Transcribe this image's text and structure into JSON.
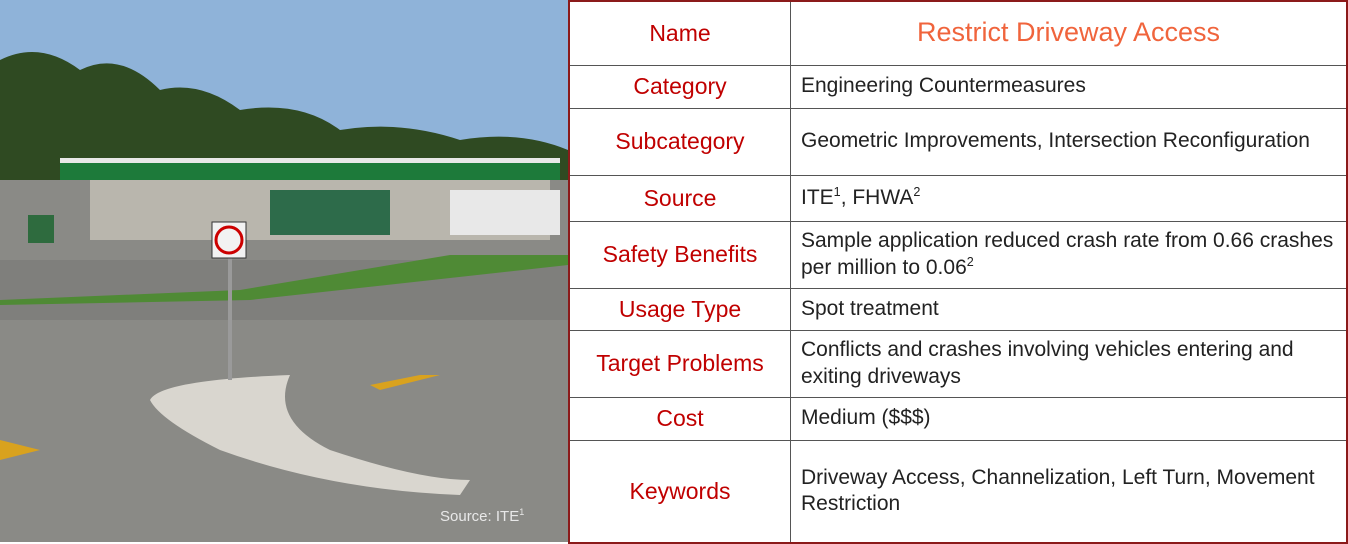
{
  "photo": {
    "caption": {
      "text": "Source: ITE",
      "sup": "1"
    }
  },
  "table": {
    "rows": [
      {
        "label": "Name",
        "value": "Restrict Driveway Access"
      },
      {
        "label": "Category",
        "value": "Engineering Countermeasures"
      },
      {
        "label": "Subcategory",
        "value": "Geometric Improvements, Intersection Reconfiguration"
      },
      {
        "label": "Source",
        "parts": [
          {
            "text": "ITE",
            "sup": "1"
          },
          {
            "text": ", FHWA",
            "sup": "2"
          }
        ]
      },
      {
        "label": "Safety Benefits",
        "parts": [
          {
            "text": "Sample application reduced crash rate from 0.66 crashes per million to 0.06",
            "sup": "2"
          }
        ]
      },
      {
        "label": "Usage Type",
        "value": "Spot treatment"
      },
      {
        "label": "Target Problems",
        "value": "Conflicts and crashes involving vehicles entering and exiting driveways"
      },
      {
        "label": "Cost",
        "value": "Medium ($$$)"
      },
      {
        "label": "Keywords",
        "value": "Driveway Access, Channelization, Left Turn, Movement Restriction"
      }
    ]
  }
}
